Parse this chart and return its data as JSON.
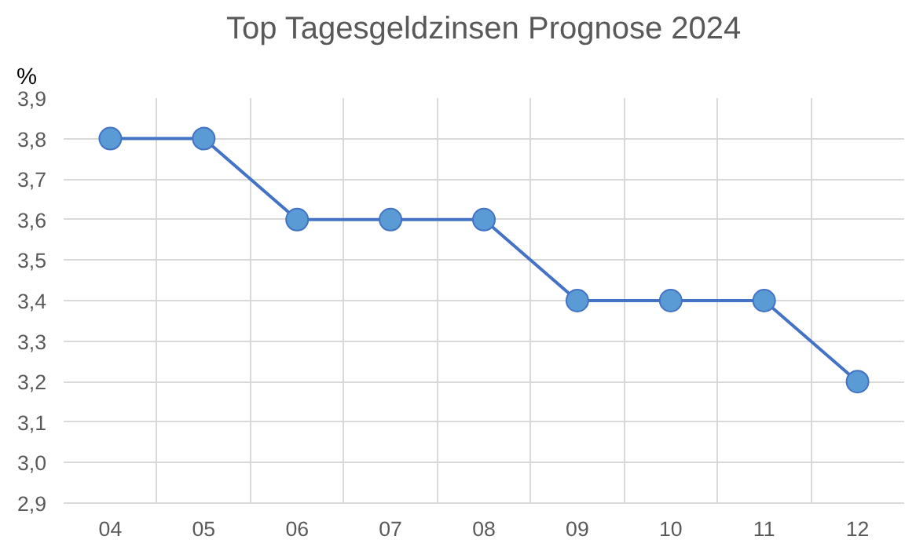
{
  "chart_data": {
    "type": "line",
    "title": "Top Tagesgeldzinsen Prognose 2024",
    "ylabel": "%",
    "categories": [
      "04",
      "05",
      "06",
      "07",
      "08",
      "09",
      "10",
      "11",
      "12"
    ],
    "series": [
      {
        "color": "#4472c4",
        "values": [
          3.8,
          3.8,
          3.6,
          3.6,
          3.6,
          3.4,
          3.4,
          3.4,
          3.2
        ]
      }
    ],
    "ylim": [
      2.9,
      3.9
    ],
    "yticks": [
      {
        "value": 2.9,
        "label": "2,9"
      },
      {
        "value": 3.0,
        "label": "3,0"
      },
      {
        "value": 3.1,
        "label": "3,1"
      },
      {
        "value": 3.2,
        "label": "3,2"
      },
      {
        "value": 3.3,
        "label": "3,3"
      },
      {
        "value": 3.4,
        "label": "3,4"
      },
      {
        "value": 3.5,
        "label": "3,5"
      },
      {
        "value": 3.6,
        "label": "3,6"
      },
      {
        "value": 3.7,
        "label": "3,7"
      },
      {
        "value": 3.8,
        "label": "3,8"
      },
      {
        "value": 3.9,
        "label": "3,9"
      }
    ],
    "grid": true,
    "marker": "circle",
    "line_style": "solid"
  }
}
